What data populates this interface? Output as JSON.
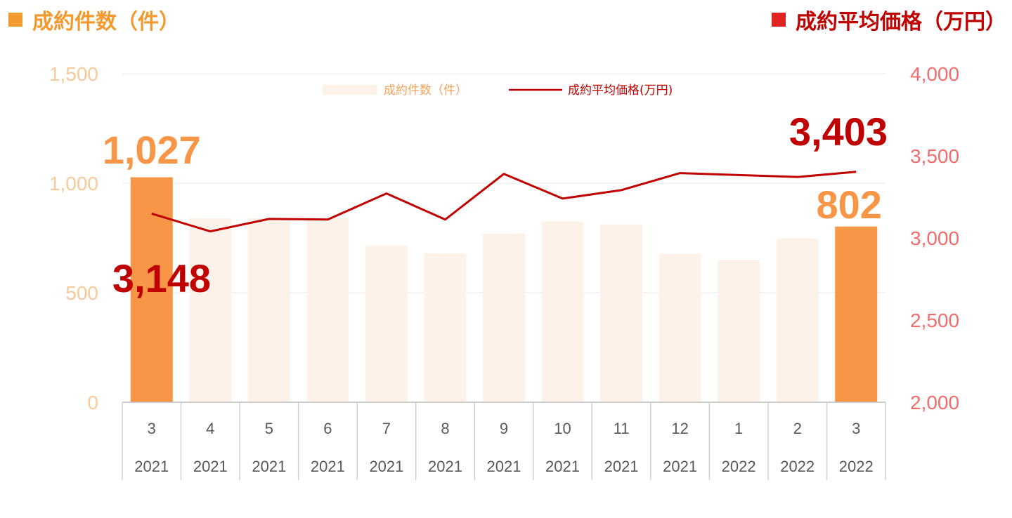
{
  "header": {
    "left_title": "成約件数（件）",
    "right_title": "成約平均価格（万円）",
    "left_color": "#f39a2e",
    "right_color": "#e32322"
  },
  "chart_data": {
    "type": "bar+line",
    "categories": [
      "3",
      "4",
      "5",
      "6",
      "7",
      "8",
      "9",
      "10",
      "11",
      "12",
      "1",
      "2",
      "3"
    ],
    "years": [
      "2021",
      "2021",
      "2021",
      "2021",
      "2021",
      "2021",
      "2021",
      "2021",
      "2021",
      "2021",
      "2022",
      "2022",
      "2022"
    ],
    "series": [
      {
        "name": "成約件数（件）",
        "kind": "bar",
        "axis": "left",
        "values": [
          1027,
          840,
          840,
          840,
          715,
          680,
          770,
          825,
          812,
          678,
          650,
          748,
          802
        ],
        "highlight_indices": [
          0,
          12
        ],
        "color": "#fdf2ea",
        "highlight_color": "#f79646"
      },
      {
        "name": "成約平均価格(万円)",
        "kind": "line",
        "axis": "right",
        "values": [
          3148,
          3040,
          3116,
          3112,
          3271,
          3112,
          3390,
          3240,
          3291,
          3395,
          3383,
          3371,
          3403
        ],
        "color": "#c00000"
      }
    ],
    "y_left": {
      "range": [
        0,
        1500
      ],
      "ticks": [
        "0",
        "500",
        "1,000",
        "1,500"
      ],
      "tick_values": [
        0,
        500,
        1000,
        1500
      ]
    },
    "y_right": {
      "range": [
        2000,
        4000
      ],
      "ticks": [
        "2,000",
        "2,500",
        "3,000",
        "3,500",
        "4,000"
      ],
      "tick_values": [
        2000,
        2500,
        3000,
        3500,
        4000
      ]
    },
    "annotations": {
      "bar_first": "1,027",
      "bar_last": "802",
      "line_first": "3,148",
      "line_last": "3,403"
    },
    "legend_position": "top-center",
    "grid": true
  }
}
